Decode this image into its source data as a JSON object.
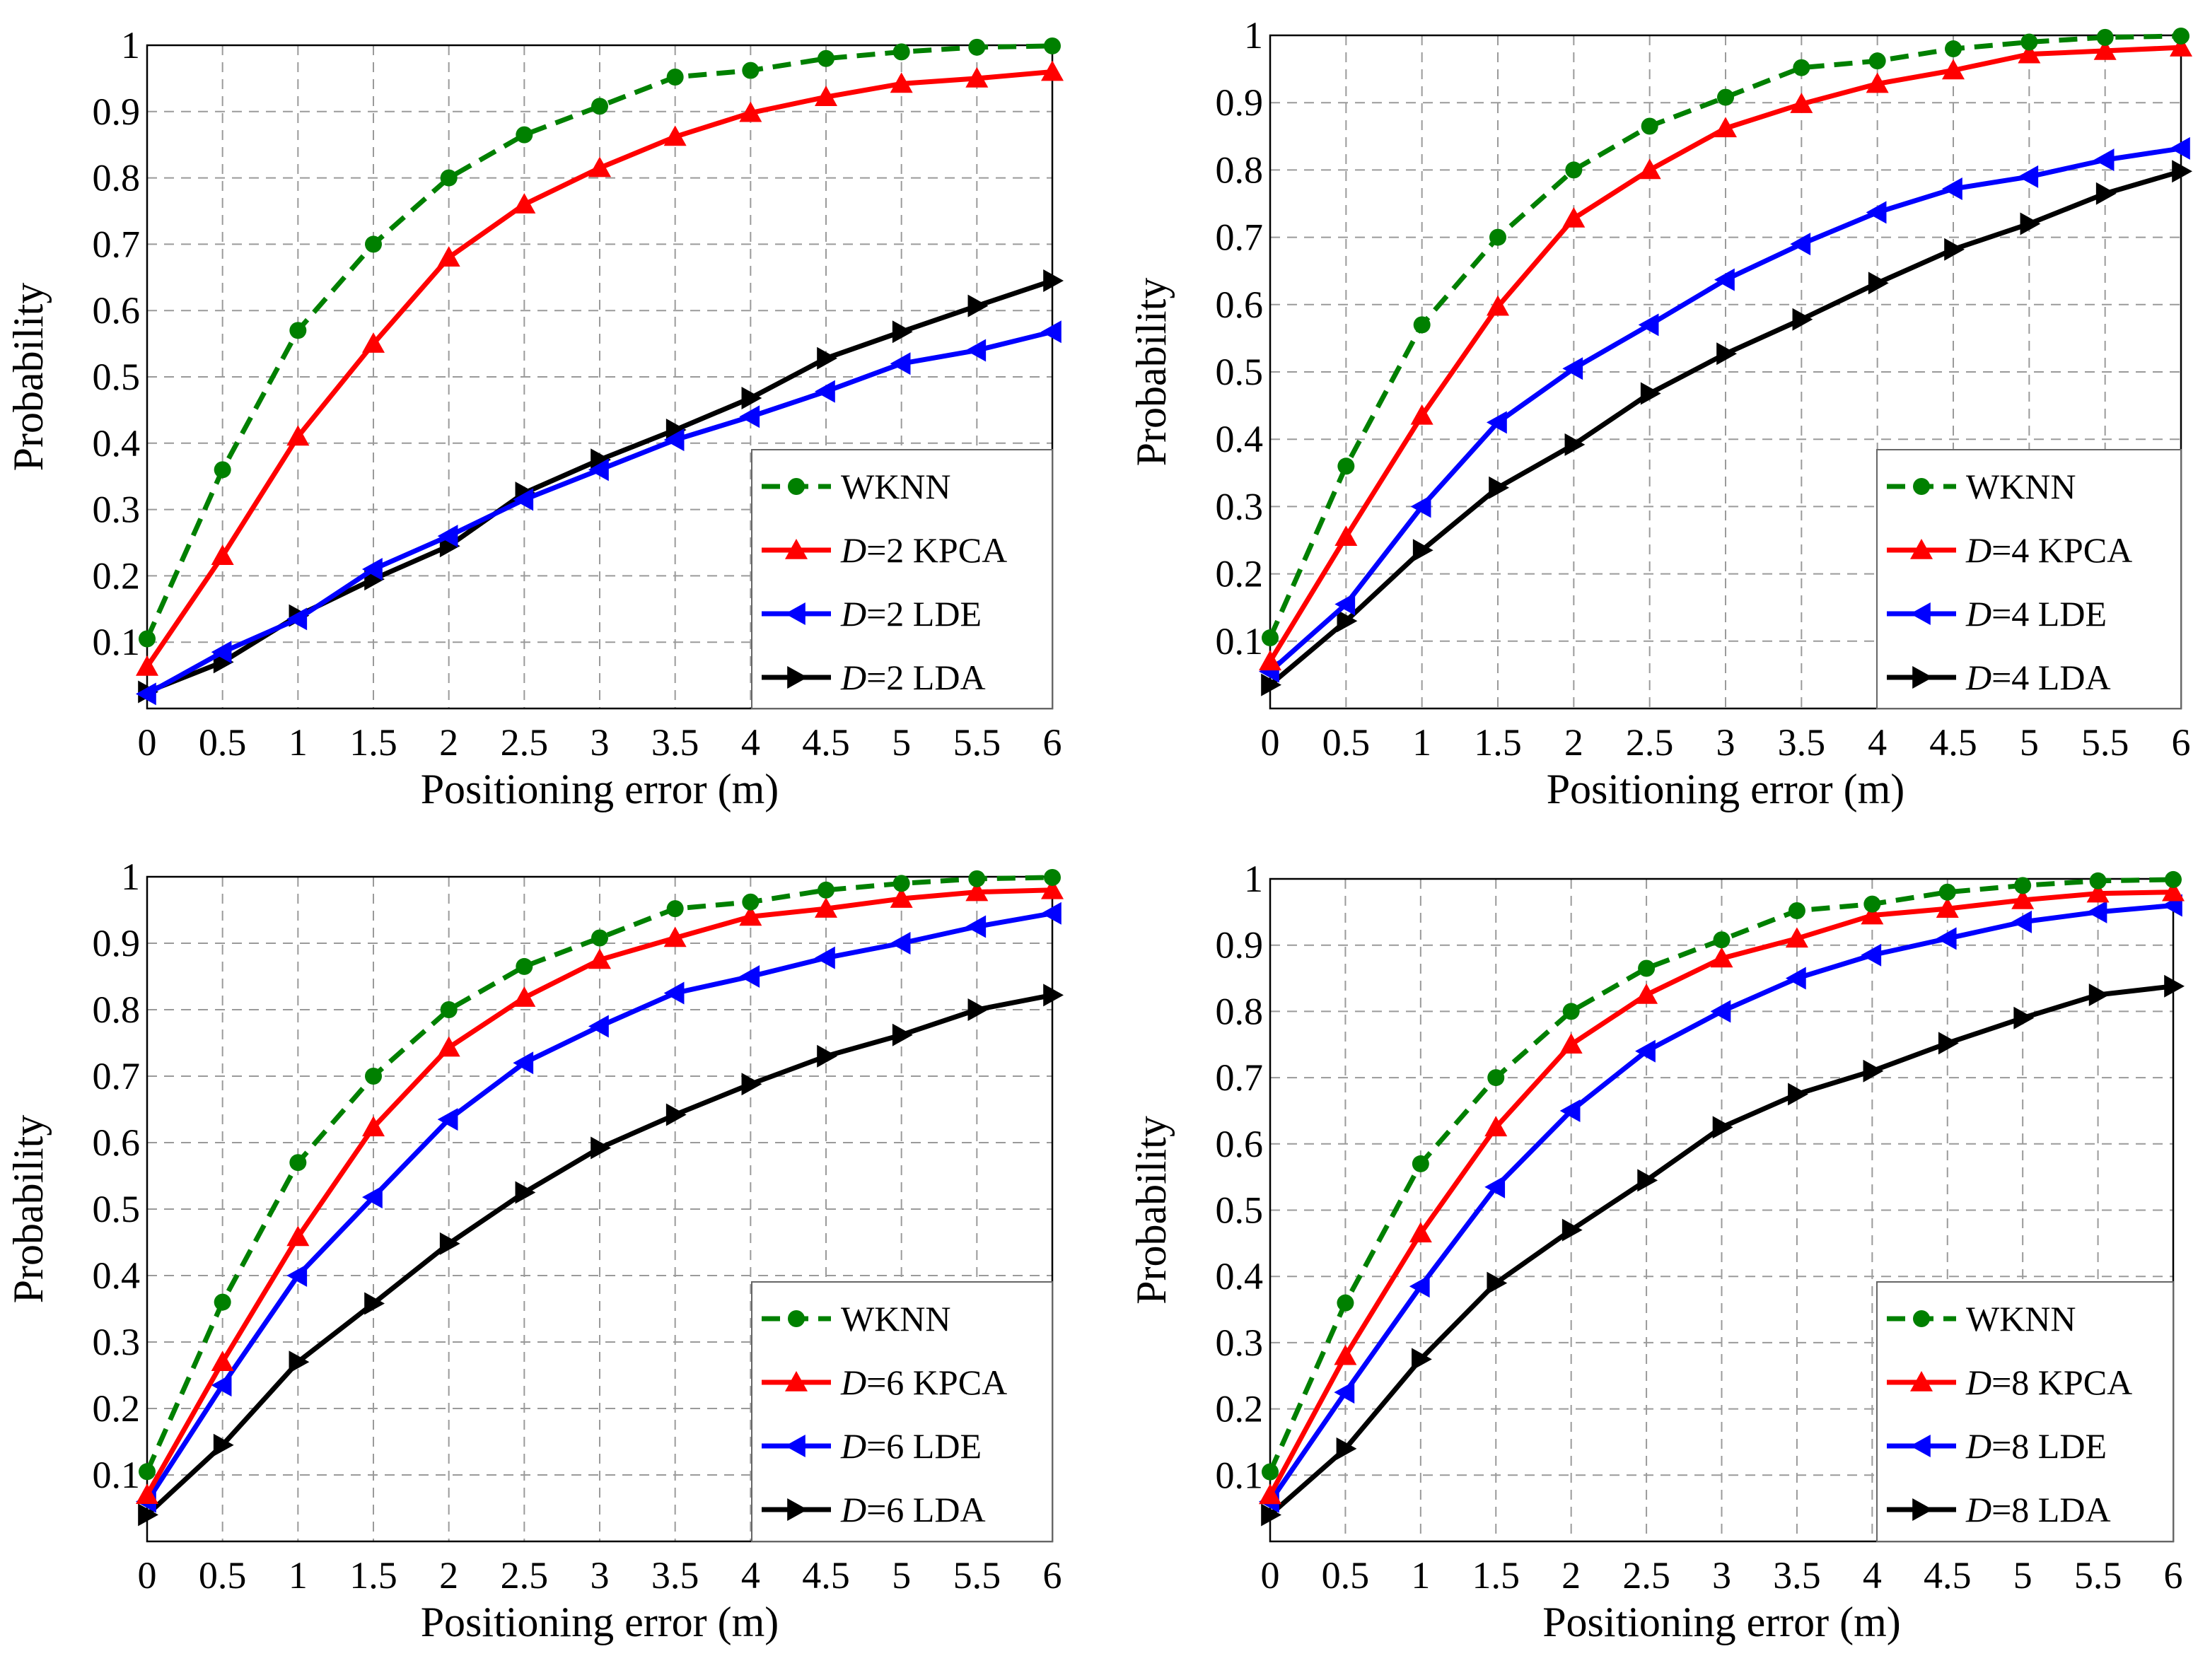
{
  "colors": {
    "wknn": "#008000",
    "kpca": "#ff0000",
    "lde": "#0000ff",
    "lda": "#000000"
  },
  "chart_data": [
    {
      "type": "line",
      "title": "",
      "xlabel": "Positioning error (m)",
      "ylabel": "Probability",
      "xlim": [
        0,
        6
      ],
      "ylim": [
        0,
        1
      ],
      "x_ticks": [
        "0",
        "0.5",
        "1",
        "1.5",
        "2",
        "2.5",
        "3",
        "3.5",
        "4",
        "4.5",
        "5",
        "5.5",
        "6"
      ],
      "y_ticks": [
        "0.1",
        "0.2",
        "0.3",
        "0.4",
        "0.5",
        "0.6",
        "0.7",
        "0.8",
        "0.9",
        "1"
      ],
      "x": [
        0,
        0.5,
        1,
        1.5,
        2,
        2.5,
        3,
        3.5,
        4,
        4.5,
        5,
        5.5,
        6
      ],
      "legend_position": "bottom-right",
      "series": [
        {
          "name": "WKNN",
          "italic": "",
          "rest": "WKNN",
          "key": "wknn",
          "marker": "circle",
          "dashed": true,
          "values": [
            0.105,
            0.36,
            0.57,
            0.7,
            0.8,
            0.865,
            0.908,
            0.952,
            0.962,
            0.98,
            0.99,
            0.997,
            0.999
          ]
        },
        {
          "name": "D=2 KPCA",
          "italic": "D",
          "rest": "=2 KPCA",
          "key": "kpca",
          "marker": "triangle-up",
          "dashed": false,
          "values": [
            0.063,
            0.23,
            0.41,
            0.55,
            0.68,
            0.76,
            0.815,
            0.862,
            0.898,
            0.922,
            0.942,
            0.95,
            0.96
          ]
        },
        {
          "name": "D=2 LDE",
          "italic": "D",
          "rest": "=2 LDE",
          "key": "lde",
          "marker": "triangle-left",
          "dashed": false,
          "values": [
            0.022,
            0.085,
            0.135,
            0.21,
            0.26,
            0.315,
            0.36,
            0.405,
            0.44,
            0.478,
            0.52,
            0.54,
            0.568
          ]
        },
        {
          "name": "D=2 LDA",
          "italic": "D",
          "rest": "=2 LDA",
          "key": "lda",
          "marker": "triangle-right",
          "dashed": false,
          "values": [
            0.025,
            0.07,
            0.14,
            0.195,
            0.245,
            0.325,
            0.375,
            0.42,
            0.468,
            0.528,
            0.568,
            0.607,
            0.645
          ]
        }
      ]
    },
    {
      "type": "line",
      "title": "",
      "xlabel": "Positioning error (m)",
      "ylabel": "Probability",
      "xlim": [
        0,
        6
      ],
      "ylim": [
        0,
        1
      ],
      "x_ticks": [
        "0",
        "0.5",
        "1",
        "1.5",
        "2",
        "2.5",
        "3",
        "3.5",
        "4",
        "4.5",
        "5",
        "5.5",
        "6"
      ],
      "y_ticks": [
        "0.1",
        "0.2",
        "0.3",
        "0.4",
        "0.5",
        "0.6",
        "0.7",
        "0.8",
        "0.9",
        "1"
      ],
      "x": [
        0,
        0.5,
        1,
        1.5,
        2,
        2.5,
        3,
        3.5,
        4,
        4.5,
        5,
        5.5,
        6
      ],
      "legend_position": "bottom-right",
      "series": [
        {
          "name": "WKNN",
          "italic": "",
          "rest": "WKNN",
          "key": "wknn",
          "marker": "circle",
          "dashed": true,
          "values": [
            0.105,
            0.36,
            0.57,
            0.7,
            0.8,
            0.865,
            0.908,
            0.952,
            0.962,
            0.98,
            0.99,
            0.997,
            0.999
          ]
        },
        {
          "name": "D=4 KPCA",
          "italic": "D",
          "rest": "=4 KPCA",
          "key": "kpca",
          "marker": "triangle-up",
          "dashed": false,
          "values": [
            0.07,
            0.255,
            0.435,
            0.597,
            0.728,
            0.8,
            0.862,
            0.898,
            0.928,
            0.948,
            0.972,
            0.977,
            0.982
          ]
        },
        {
          "name": "D=4 LDE",
          "italic": "D",
          "rest": "=4 LDE",
          "key": "lde",
          "marker": "triangle-left",
          "dashed": false,
          "values": [
            0.055,
            0.155,
            0.3,
            0.425,
            0.505,
            0.57,
            0.637,
            0.69,
            0.737,
            0.772,
            0.79,
            0.815,
            0.832
          ]
        },
        {
          "name": "D=4 LDA",
          "italic": "D",
          "rest": "=4 LDA",
          "key": "lda",
          "marker": "triangle-right",
          "dashed": false,
          "values": [
            0.035,
            0.13,
            0.235,
            0.328,
            0.392,
            0.468,
            0.527,
            0.578,
            0.632,
            0.682,
            0.72,
            0.765,
            0.798
          ]
        }
      ]
    },
    {
      "type": "line",
      "title": "",
      "xlabel": "Positioning error (m)",
      "ylabel": "Probability",
      "xlim": [
        0,
        6
      ],
      "ylim": [
        0,
        1
      ],
      "x_ticks": [
        "0",
        "0.5",
        "1",
        "1.5",
        "2",
        "2.5",
        "3",
        "3.5",
        "4",
        "4.5",
        "5",
        "5.5",
        "6"
      ],
      "y_ticks": [
        "0.1",
        "0.2",
        "0.3",
        "0.4",
        "0.5",
        "0.6",
        "0.7",
        "0.8",
        "0.9",
        "1"
      ],
      "x": [
        0,
        0.5,
        1,
        1.5,
        2,
        2.5,
        3,
        3.5,
        4,
        4.5,
        5,
        5.5,
        6
      ],
      "legend_position": "bottom-right",
      "series": [
        {
          "name": "WKNN",
          "italic": "",
          "rest": "WKNN",
          "key": "wknn",
          "marker": "circle",
          "dashed": true,
          "values": [
            0.105,
            0.36,
            0.57,
            0.7,
            0.8,
            0.865,
            0.908,
            0.952,
            0.962,
            0.98,
            0.99,
            0.997,
            0.999
          ]
        },
        {
          "name": "D=6 KPCA",
          "italic": "D",
          "rest": "=6 KPCA",
          "key": "kpca",
          "marker": "triangle-up",
          "dashed": false,
          "values": [
            0.07,
            0.27,
            0.458,
            0.623,
            0.743,
            0.818,
            0.875,
            0.908,
            0.94,
            0.952,
            0.967,
            0.977,
            0.98
          ]
        },
        {
          "name": "D=6 LDE",
          "italic": "D",
          "rest": "=6 LDE",
          "key": "lde",
          "marker": "triangle-left",
          "dashed": false,
          "values": [
            0.06,
            0.235,
            0.4,
            0.518,
            0.635,
            0.72,
            0.775,
            0.825,
            0.85,
            0.878,
            0.9,
            0.925,
            0.945
          ]
        },
        {
          "name": "D=6 LDA",
          "italic": "D",
          "rest": "=6 LDA",
          "key": "lda",
          "marker": "triangle-right",
          "dashed": false,
          "values": [
            0.04,
            0.145,
            0.27,
            0.358,
            0.448,
            0.525,
            0.592,
            0.642,
            0.688,
            0.73,
            0.762,
            0.8,
            0.822
          ]
        }
      ]
    },
    {
      "type": "line",
      "title": "",
      "xlabel": "Positioning error (m)",
      "ylabel": "Probability",
      "xlim": [
        0,
        6
      ],
      "ylim": [
        0,
        1
      ],
      "x_ticks": [
        "0",
        "0.5",
        "1",
        "1.5",
        "2",
        "2.5",
        "3",
        "3.5",
        "4",
        "4.5",
        "5",
        "5.5",
        "6"
      ],
      "y_ticks": [
        "0.1",
        "0.2",
        "0.3",
        "0.4",
        "0.5",
        "0.6",
        "0.7",
        "0.8",
        "0.9",
        "1"
      ],
      "x": [
        0,
        0.5,
        1,
        1.5,
        2,
        2.5,
        3,
        3.5,
        4,
        4.5,
        5,
        5.5,
        6
      ],
      "legend_position": "bottom-right",
      "series": [
        {
          "name": "WKNN",
          "italic": "",
          "rest": "WKNN",
          "key": "wknn",
          "marker": "circle",
          "dashed": true,
          "values": [
            0.105,
            0.36,
            0.57,
            0.7,
            0.8,
            0.865,
            0.908,
            0.952,
            0.962,
            0.98,
            0.99,
            0.997,
            0.999
          ]
        },
        {
          "name": "D=8 KPCA",
          "italic": "D",
          "rest": "=8 KPCA",
          "key": "kpca",
          "marker": "triangle-up",
          "dashed": false,
          "values": [
            0.07,
            0.28,
            0.465,
            0.625,
            0.75,
            0.825,
            0.88,
            0.91,
            0.945,
            0.955,
            0.968,
            0.978,
            0.98
          ]
        },
        {
          "name": "D=8 LDE",
          "italic": "D",
          "rest": "=8 LDE",
          "key": "lde",
          "marker": "triangle-left",
          "dashed": false,
          "values": [
            0.06,
            0.225,
            0.385,
            0.535,
            0.65,
            0.74,
            0.8,
            0.85,
            0.885,
            0.91,
            0.935,
            0.95,
            0.96
          ]
        },
        {
          "name": "D=8 LDA",
          "italic": "D",
          "rest": "=8 LDA",
          "key": "lda",
          "marker": "triangle-right",
          "dashed": false,
          "values": [
            0.04,
            0.14,
            0.275,
            0.39,
            0.47,
            0.545,
            0.625,
            0.675,
            0.71,
            0.752,
            0.79,
            0.825,
            0.838
          ]
        }
      ]
    }
  ]
}
